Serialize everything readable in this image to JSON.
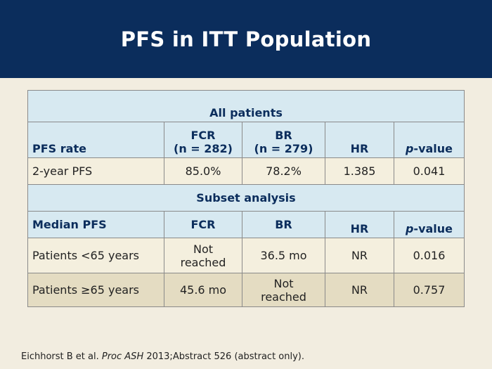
{
  "title": "PFS in ITT Population",
  "table": {
    "all_patients_header": "All patients",
    "columns1": {
      "label": "PFS rate",
      "fcr_line1": "FCR",
      "fcr_line2": "(n = 282)",
      "br_line1": "BR",
      "br_line2": "(n = 279)",
      "hr": "HR",
      "p_italic": "p",
      "p_rest": "-value"
    },
    "row_2yr": {
      "label": "2-year PFS",
      "fcr": "85.0%",
      "br": "78.2%",
      "hr": "1.385",
      "p": "0.041"
    },
    "subset_header": "Subset analysis",
    "columns2": {
      "label": "Median PFS",
      "fcr": "FCR",
      "br": "BR",
      "hr": "HR",
      "p_italic": "p",
      "p_rest": "-value"
    },
    "row_lt65": {
      "label": "Patients <65 years",
      "fcr_line1": "Not",
      "fcr_line2": "reached",
      "br": "36.5 mo",
      "hr": "NR",
      "p": "0.016"
    },
    "row_ge65": {
      "label": "Patients ≥65 years",
      "fcr": "45.6 mo",
      "br_line1": "Not",
      "br_line2": "reached",
      "hr": "NR",
      "p": "0.757"
    }
  },
  "footnote": {
    "before": "Eichhorst B et al. ",
    "journal": "Proc ASH",
    "after": " 2013;Abstract 526 (abstract only)."
  }
}
